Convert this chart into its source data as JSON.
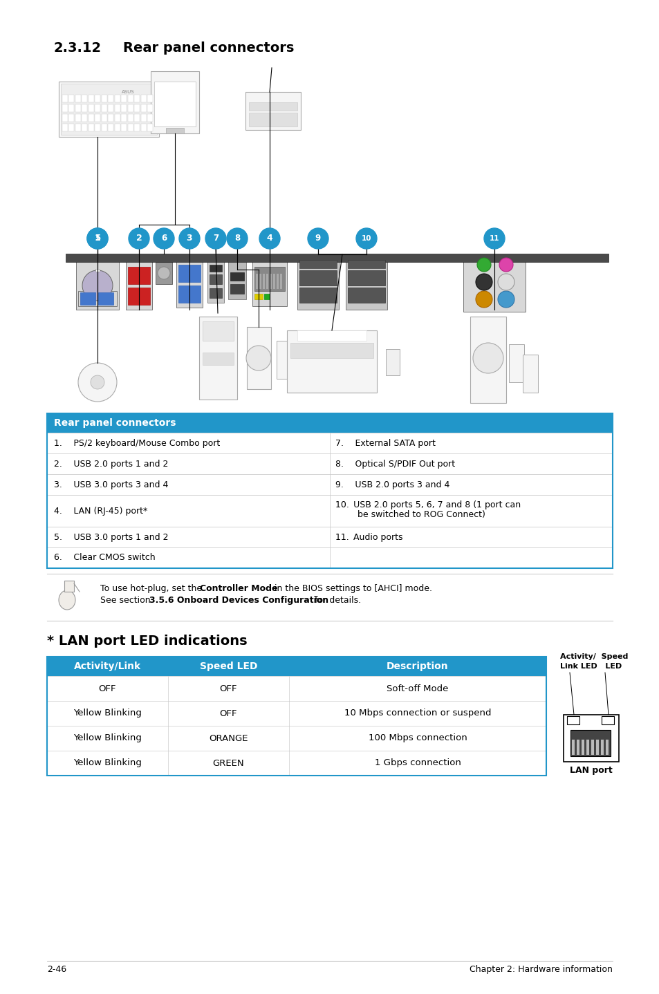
{
  "page_bg": "#ffffff",
  "section_title_num": "2.3.12",
  "section_title_text": "Rear panel connectors",
  "table1_header": "Rear panel connectors",
  "table1_header_bg": "#2196C9",
  "table1_header_color": "#ffffff",
  "table1_rows": [
    [
      "1.  PS/2 keyboard/Mouse Combo port",
      "7.  External SATA port"
    ],
    [
      "2.  USB 2.0 ports 1 and 2",
      "8.  Optical S/PDIF Out port"
    ],
    [
      "3.  USB 3.0 ports 3 and 4",
      "9.  USB 2.0 ports 3 and 4"
    ],
    [
      "4.  LAN (RJ-45) port*",
      "10. USB 2.0 ports 5, 6, 7 and 8 (1 port can\n        be switched to ROG Connect)"
    ],
    [
      "5.  USB 3.0 ports 1 and 2",
      "11. Audio ports"
    ],
    [
      "6.  Clear CMOS switch",
      ""
    ]
  ],
  "note_line1_normal": "To use hot-plug, set the ",
  "note_line1_bold": "Controller Mode",
  "note_line1_end": " in the BIOS settings to [AHCI] mode.",
  "note_line2_normal": "See section ",
  "note_line2_bold": "3.5.6 Onboard Devices Configuration",
  "note_line2_end": " for details.",
  "lan_section_title": "* LAN port LED indications",
  "lan_table_header_bg": "#2196C9",
  "lan_table_headers": [
    "Activity/Link",
    "Speed LED",
    "Description"
  ],
  "lan_table_rows": [
    [
      "OFF",
      "OFF",
      "Soft-off Mode"
    ],
    [
      "Yellow Blinking",
      "OFF",
      "10 Mbps connection or suspend"
    ],
    [
      "Yellow Blinking",
      "ORANGE",
      "100 Mbps connection"
    ],
    [
      "Yellow Blinking",
      "GREEN",
      "1 Gbps connection"
    ]
  ],
  "lan_diag_label1": "Activity/  Speed",
  "lan_diag_label2": "Link LED   LED",
  "lan_port_label": "LAN port",
  "footer_left": "2-46",
  "footer_right": "Chapter 2: Hardware information",
  "table_border_color": "#2196C9"
}
